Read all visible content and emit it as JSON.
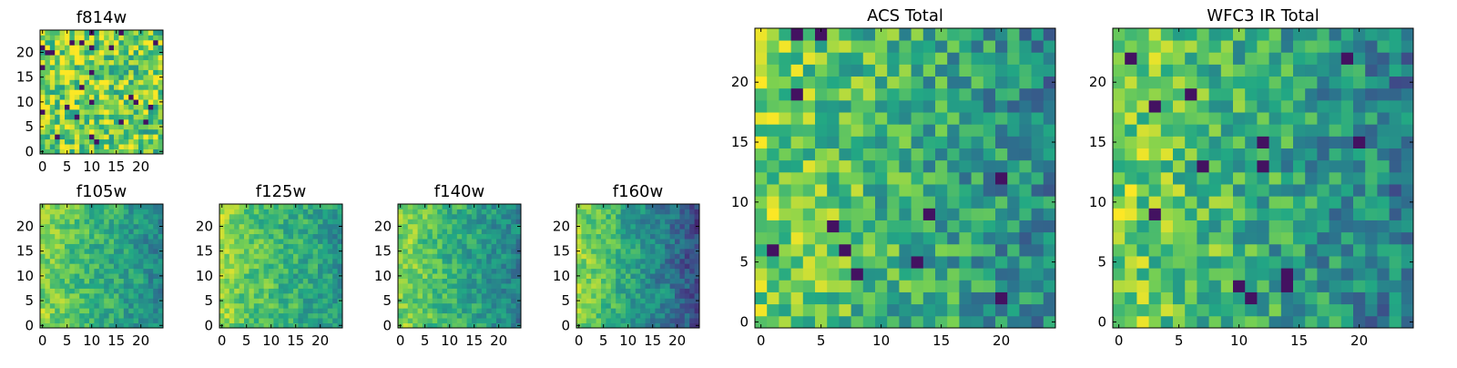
{
  "figure": {
    "panel_count": 7,
    "colormap": "viridis"
  },
  "colormap": [
    "#440154",
    "#414487",
    "#2a788e",
    "#22a884",
    "#7ad151",
    "#fde725"
  ],
  "chart_data": [
    {
      "type": "heatmap",
      "title": "f814w",
      "size": 25,
      "seed": 11,
      "bias": 0.05,
      "style": "fine",
      "xticks": [
        "0",
        "5",
        "10",
        "15",
        "20"
      ],
      "yticks": [
        "0",
        "5",
        "10",
        "15",
        "20"
      ],
      "xlim": [
        -0.5,
        24.5
      ],
      "ylim": [
        -0.5,
        24.5
      ]
    },
    {
      "type": "heatmap",
      "title": "f105w",
      "size": 25,
      "seed": 23,
      "bias": 0.35,
      "style": "smooth",
      "xticks": [
        "0",
        "5",
        "10",
        "15",
        "20"
      ],
      "yticks": [
        "0",
        "5",
        "10",
        "15",
        "20"
      ],
      "xlim": [
        -0.5,
        24.5
      ],
      "ylim": [
        -0.5,
        24.5
      ]
    },
    {
      "type": "heatmap",
      "title": "f125w",
      "size": 25,
      "seed": 37,
      "bias": 0.3,
      "style": "smooth",
      "xticks": [
        "0",
        "5",
        "10",
        "15",
        "20"
      ],
      "yticks": [
        "0",
        "5",
        "10",
        "15",
        "20"
      ],
      "xlim": [
        -0.5,
        24.5
      ],
      "ylim": [
        -0.5,
        24.5
      ]
    },
    {
      "type": "heatmap",
      "title": "f140w",
      "size": 25,
      "seed": 41,
      "bias": 0.4,
      "style": "smooth",
      "xticks": [
        "0",
        "5",
        "10",
        "15",
        "20"
      ],
      "yticks": [
        "0",
        "5",
        "10",
        "15",
        "20"
      ],
      "xlim": [
        -0.5,
        24.5
      ],
      "ylim": [
        -0.5,
        24.5
      ]
    },
    {
      "type": "heatmap",
      "title": "f160w",
      "size": 25,
      "seed": 53,
      "bias": 0.55,
      "style": "smooth",
      "xticks": [
        "0",
        "5",
        "10",
        "15",
        "20"
      ],
      "yticks": [
        "0",
        "5",
        "10",
        "15",
        "20"
      ],
      "xlim": [
        -0.5,
        24.5
      ],
      "ylim": [
        -0.5,
        24.5
      ]
    },
    {
      "type": "heatmap",
      "title": "ACS Total",
      "size": 25,
      "seed": 67,
      "bias": 0.35,
      "style": "block",
      "xticks": [
        "0",
        "5",
        "10",
        "15",
        "20"
      ],
      "yticks": [
        "0",
        "5",
        "10",
        "15",
        "20"
      ],
      "xlim": [
        -0.5,
        24.5
      ],
      "ylim": [
        -0.5,
        24.5
      ]
    },
    {
      "type": "heatmap",
      "title": "WFC3 IR Total",
      "size": 25,
      "seed": 79,
      "bias": 0.4,
      "style": "block",
      "xticks": [
        "0",
        "5",
        "10",
        "15",
        "20"
      ],
      "yticks": [
        "0",
        "5",
        "10",
        "15",
        "20"
      ],
      "xlim": [
        -0.5,
        24.5
      ],
      "ylim": [
        -0.5,
        24.5
      ]
    }
  ]
}
